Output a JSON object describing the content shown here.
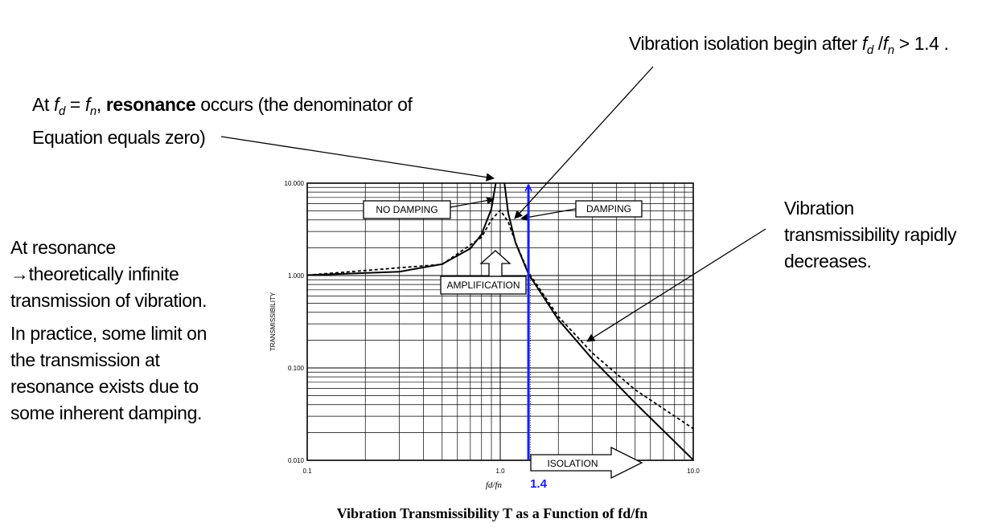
{
  "annotations": {
    "isolation_note_prefix": "Vibration isolation begin after",
    "isolation_note_fd": "f",
    "isolation_note_fd_sub": "d",
    "isolation_note_slash": " /",
    "isolation_note_fn": "f",
    "isolation_note_fn_sub": "n",
    "isolation_note_suffix": " > 1.4 .",
    "resonance_at": "At",
    "resonance_fd": "f",
    "resonance_fd_sub": "d",
    "resonance_eq": " = ",
    "resonance_fn": "f",
    "resonance_fn_sub": "n",
    "resonance_comma": ", ",
    "resonance_bold": "resonance",
    "resonance_rest": " occurs (the denominator of",
    "resonance_line2": "Equation equals zero)",
    "left_line1": "At resonance",
    "left_line2": "→theoretically infinite",
    "left_line3": "transmission of vibration.",
    "left_line4": "In practice, some limit on",
    "left_line5": "the transmission at",
    "left_line6": "resonance exists due to",
    "left_line7": "some inherent damping.",
    "right_line1": "Vibration",
    "right_line2": "transmissibility rapidly",
    "right_line3": "decreases."
  },
  "chart_data": {
    "type": "line",
    "title": "Vibration Transmissibility T as a Function of fd/fn",
    "xlabel": "fd/fn",
    "ylabel": "TRANSMISSIBILITY",
    "xscale": "log",
    "yscale": "log",
    "xlim": [
      0.1,
      10.0
    ],
    "ylim": [
      0.01,
      10.0
    ],
    "x_ticks": [
      "0.1",
      "1.0",
      "10.0"
    ],
    "y_ticks": [
      "0.010",
      "0.100",
      "1.000",
      "10.000"
    ],
    "grid": true,
    "series": [
      {
        "name": "NO DAMPING",
        "style": "solid",
        "x": [
          0.1,
          0.3,
          0.5,
          0.7,
          0.8,
          0.9,
          0.95,
          1.05,
          1.1,
          1.2,
          1.4,
          2,
          3,
          5,
          10
        ],
        "y": [
          1.01,
          1.1,
          1.33,
          1.96,
          2.78,
          5.26,
          10.3,
          10.2,
          4.76,
          2.27,
          1.04,
          0.333,
          0.125,
          0.0417,
          0.0101
        ]
      },
      {
        "name": "DAMPING",
        "style": "dashed",
        "x": [
          0.1,
          0.5,
          0.8,
          0.9,
          1.0,
          1.1,
          1.2,
          1.4,
          2,
          3,
          5,
          10
        ],
        "y": [
          1.01,
          1.32,
          2.6,
          4.0,
          5.1,
          3.8,
          2.3,
          1.08,
          0.36,
          0.145,
          0.058,
          0.022
        ]
      }
    ],
    "markers": [
      {
        "x": 1.4,
        "label": "1.4",
        "color": "#1a1aff"
      }
    ],
    "box_labels": {
      "no_damping": "NO DAMPING",
      "damping": "DAMPING",
      "amplification": "AMPLIFICATION",
      "isolation": "ISOLATION"
    }
  }
}
